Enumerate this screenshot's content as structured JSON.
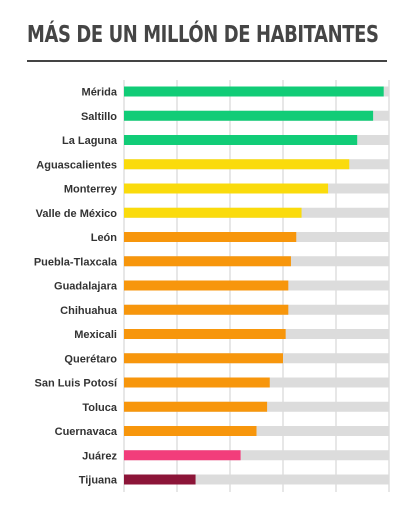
{
  "title": "MÁS DE UN MILLÓN DE HABITANTES",
  "chart_data": {
    "type": "bar",
    "orientation": "horizontal",
    "title": "MÁS DE UN MILLÓN DE HABITANTES",
    "xlabel": "",
    "ylabel": "",
    "grid": true,
    "xlim": [
      0,
      100
    ],
    "categories": [
      "Mérida",
      "Saltillo",
      "La Laguna",
      "Aguascalientes",
      "Monterrey",
      "Valle de México",
      "León",
      "Puebla-Tlaxcala",
      "Guadalajara",
      "Chihuahua",
      "Mexicali",
      "Querétaro",
      "San Luis Potosí",
      "Toluca",
      "Cuernavaca",
      "Juárez",
      "Tijuana"
    ],
    "values": [
      98,
      94,
      88,
      85,
      77,
      67,
      65,
      63,
      62,
      62,
      61,
      60,
      55,
      54,
      50,
      44,
      27
    ],
    "colors": [
      "#11cc77",
      "#11cc77",
      "#11cc77",
      "#fadb0c",
      "#fadb0c",
      "#fadb0c",
      "#f7960c",
      "#f7960c",
      "#f7960c",
      "#f7960c",
      "#f7960c",
      "#f7960c",
      "#f7960c",
      "#f7960c",
      "#f7960c",
      "#f23d7b",
      "#8c1538"
    ],
    "track_color": "#dcdcdc",
    "grid_color": "#cfcfcf"
  }
}
